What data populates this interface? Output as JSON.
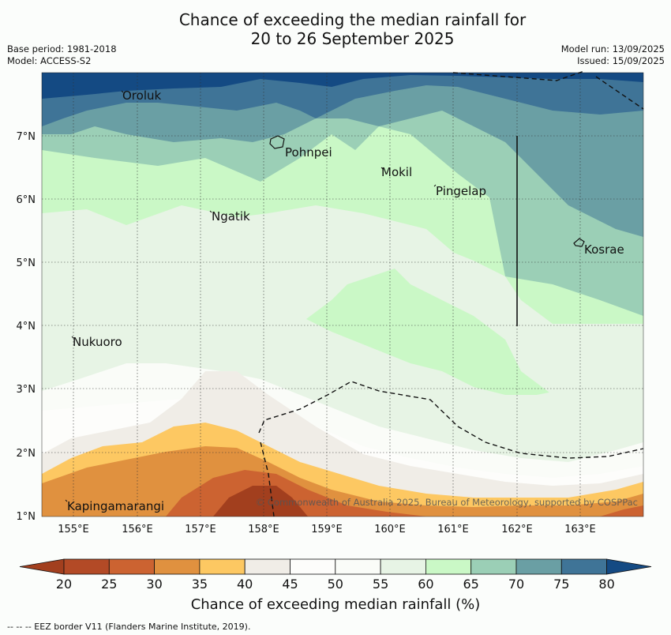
{
  "title_line1": "Chance of exceeding the median rainfall for",
  "title_line2": "20 to 26 September 2025",
  "meta": {
    "base_period": "Base period: 1981-2018",
    "model": "Model: ACCESS-S2",
    "model_run": "Model run: 13/09/2025",
    "issued": "Issued: 15/09/2025"
  },
  "lat_labels": [
    "7°N",
    "6°N",
    "5°N",
    "4°N",
    "3°N",
    "2°N",
    "1°N"
  ],
  "lon_labels": [
    "155°E",
    "156°E",
    "157°E",
    "158°E",
    "159°E",
    "160°E",
    "161°E",
    "162°E",
    "163°E"
  ],
  "places": {
    "oroluk": "Oroluk",
    "pohnpei": "Pohnpei",
    "mokil": "Mokil",
    "pingelap": "Pingelap",
    "ngatik": "Ngatik",
    "kosrae": "Kosrae",
    "nukuoro": "Nukuoro",
    "kapingamarangi": "Kapingamarangi"
  },
  "copyright": "© Commonwealth of Australia 2025, Bureau of Meteorology, supported by COSPPac",
  "colorbar": {
    "ticks": [
      "20",
      "25",
      "30",
      "35",
      "40",
      "45",
      "50",
      "55",
      "60",
      "65",
      "70",
      "75",
      "80"
    ],
    "colors": [
      "#a23f1e",
      "#b34a26",
      "#cc6331",
      "#e0913f",
      "#fdc862",
      "#f0ede7",
      "#fdfdfb",
      "#fafcf8",
      "#e7f4e5",
      "#caf8c6",
      "#9bcfb6",
      "#6a9fa4",
      "#3f7497",
      "#144a83"
    ],
    "title": "Chance of exceeding median rainfall (%)"
  },
  "footnote": "--  --  -- EEZ border V11 (Flanders Marine Institute, 2019)."
}
